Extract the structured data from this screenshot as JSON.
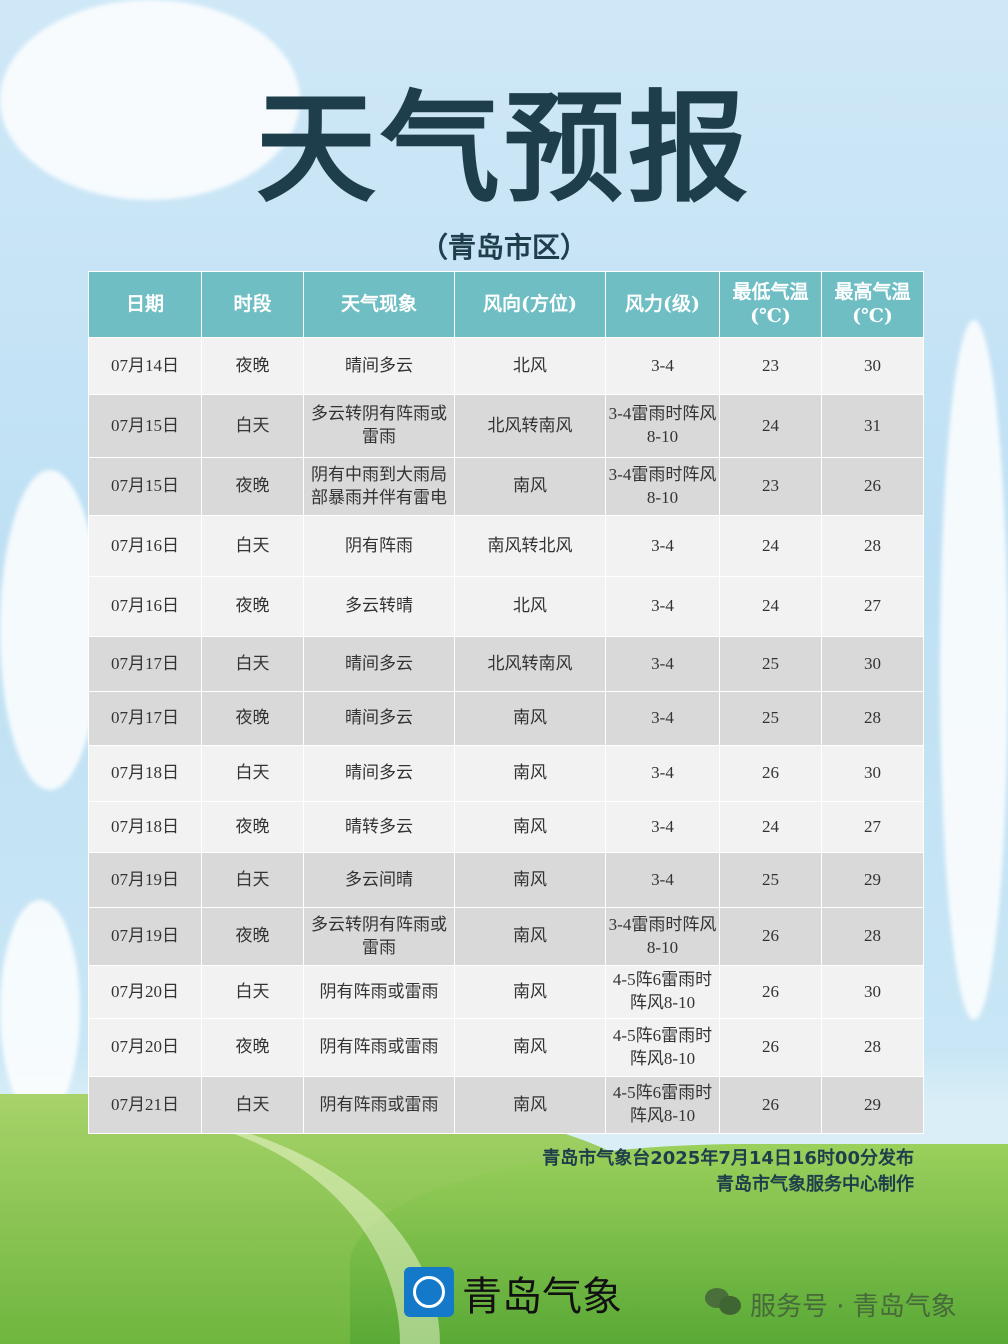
{
  "title": "天气预报",
  "subtitle": "（青岛市区）",
  "table": {
    "headers": [
      "日期",
      "时段",
      "天气现象",
      "风向(方位)",
      "风力(级)",
      "最低气温\n(℃)",
      "最高气温\n(℃)"
    ],
    "rows": [
      [
        "07月14日",
        "夜晚",
        "晴间多云",
        "北风",
        "3-4",
        "23",
        "30"
      ],
      [
        "07月15日",
        "白天",
        "多云转阴有阵雨或雷雨",
        "北风转南风",
        "3-4雷雨时阵风8-10",
        "24",
        "31"
      ],
      [
        "07月15日",
        "夜晚",
        "阴有中雨到大雨局部暴雨并伴有雷电",
        "南风",
        "3-4雷雨时阵风8-10",
        "23",
        "26"
      ],
      [
        "07月16日",
        "白天",
        "阴有阵雨",
        "南风转北风",
        "3-4",
        "24",
        "28"
      ],
      [
        "07月16日",
        "夜晚",
        "多云转晴",
        "北风",
        "3-4",
        "24",
        "27"
      ],
      [
        "07月17日",
        "白天",
        "晴间多云",
        "北风转南风",
        "3-4",
        "25",
        "30"
      ],
      [
        "07月17日",
        "夜晚",
        "晴间多云",
        "南风",
        "3-4",
        "25",
        "28"
      ],
      [
        "07月18日",
        "白天",
        "晴间多云",
        "南风",
        "3-4",
        "26",
        "30"
      ],
      [
        "07月18日",
        "夜晚",
        "晴转多云",
        "南风",
        "3-4",
        "24",
        "27"
      ],
      [
        "07月19日",
        "白天",
        "多云间晴",
        "南风",
        "3-4",
        "25",
        "29"
      ],
      [
        "07月19日",
        "夜晚",
        "多云转阴有阵雨或雷雨",
        "南风",
        "3-4雷雨时阵风8-10",
        "26",
        "28"
      ],
      [
        "07月20日",
        "白天",
        "阴有阵雨或雷雨",
        "南风",
        "4-5阵6雷雨时阵风8-10",
        "26",
        "30"
      ],
      [
        "07月20日",
        "夜晚",
        "阴有阵雨或雷雨",
        "南风",
        "4-5阵6雷雨时阵风8-10",
        "26",
        "28"
      ],
      [
        "07月21日",
        "白天",
        "阴有阵雨或雷雨",
        "南风",
        "4-5阵6雷雨时阵风8-10",
        "26",
        "29"
      ]
    ]
  },
  "issuer": {
    "line1": "青岛市气象台2025年7月14日16时00分发布",
    "line2": "青岛市气象服务中心制作"
  },
  "footer": {
    "logo_text": "青岛气象",
    "service_text": "服务号 · 青岛气象",
    "logo_icon": "cloud-swirl-icon",
    "wechat_icon": "wechat-icon"
  },
  "colors": {
    "header_bg": "#6fbec4",
    "title": "#1f3e4c",
    "row_light": "#f2f2f2",
    "row_dark": "#d9d9d9"
  }
}
